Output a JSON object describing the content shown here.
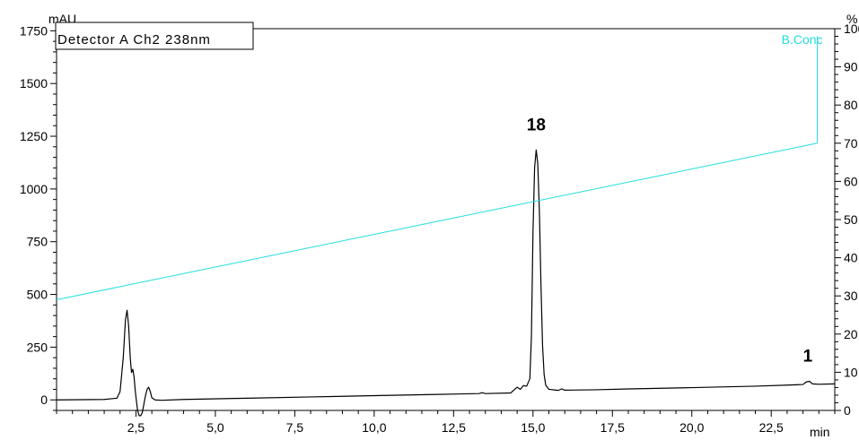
{
  "chart_data": {
    "type": "line",
    "title": "",
    "legend_text": "Detector A Ch2 238nm",
    "y_left_unit": "mAU",
    "y_right_unit": "%",
    "x_unit": "min",
    "xlim": [
      0,
      24.5
    ],
    "ylim_left": [
      -50,
      1760
    ],
    "ylim_right": [
      0,
      100
    ],
    "x_ticks": [
      2.5,
      5.0,
      7.5,
      10.0,
      12.5,
      15.0,
      17.5,
      20.0,
      22.5
    ],
    "x_tick_labels": [
      "2,5",
      "5,0",
      "7,5",
      "10,0",
      "12,5",
      "15,0",
      "17,5",
      "20,0",
      "22,5"
    ],
    "y_left_ticks": [
      0,
      250,
      500,
      750,
      1000,
      1250,
      1500,
      1750
    ],
    "y_left_tick_labels": [
      "0",
      "250",
      "500",
      "750",
      "1000",
      "1250",
      "1500",
      "1750"
    ],
    "y_right_ticks": [
      0,
      10,
      20,
      30,
      40,
      50,
      60,
      70,
      80,
      90,
      100
    ],
    "y_right_tick_labels": [
      "0",
      "10",
      "20",
      "30",
      "40",
      "50",
      "60",
      "70",
      "80",
      "90",
      "100"
    ],
    "series": [
      {
        "name": "Detector A Ch2 238nm",
        "axis": "left",
        "color": "#000000",
        "points": [
          [
            0.0,
            0
          ],
          [
            1.5,
            2
          ],
          [
            1.9,
            8
          ],
          [
            2.0,
            40
          ],
          [
            2.1,
            200
          ],
          [
            2.17,
            380
          ],
          [
            2.22,
            425
          ],
          [
            2.27,
            350
          ],
          [
            2.32,
            200
          ],
          [
            2.36,
            130
          ],
          [
            2.4,
            145
          ],
          [
            2.44,
            110
          ],
          [
            2.48,
            40
          ],
          [
            2.55,
            -50
          ],
          [
            2.6,
            -75
          ],
          [
            2.65,
            -75
          ],
          [
            2.7,
            -60
          ],
          [
            2.75,
            -20
          ],
          [
            2.8,
            20
          ],
          [
            2.85,
            50
          ],
          [
            2.9,
            60
          ],
          [
            2.95,
            40
          ],
          [
            3.0,
            10
          ],
          [
            3.1,
            0
          ],
          [
            3.3,
            -2
          ],
          [
            4.0,
            2
          ],
          [
            6.0,
            8
          ],
          [
            8.0,
            14
          ],
          [
            10.0,
            20
          ],
          [
            12.0,
            26
          ],
          [
            13.3,
            30
          ],
          [
            13.4,
            34
          ],
          [
            13.5,
            30
          ],
          [
            14.3,
            33
          ],
          [
            14.5,
            60
          ],
          [
            14.6,
            50
          ],
          [
            14.7,
            68
          ],
          [
            14.8,
            65
          ],
          [
            14.9,
            100
          ],
          [
            14.95,
            300
          ],
          [
            15.0,
            800
          ],
          [
            15.05,
            1100
          ],
          [
            15.1,
            1185
          ],
          [
            15.15,
            1120
          ],
          [
            15.2,
            900
          ],
          [
            15.25,
            550
          ],
          [
            15.3,
            260
          ],
          [
            15.35,
            120
          ],
          [
            15.4,
            70
          ],
          [
            15.5,
            50
          ],
          [
            15.8,
            45
          ],
          [
            15.9,
            52
          ],
          [
            16.0,
            46
          ],
          [
            17.0,
            48
          ],
          [
            18.0,
            52
          ],
          [
            20.0,
            58
          ],
          [
            22.0,
            65
          ],
          [
            23.0,
            70
          ],
          [
            23.5,
            73
          ],
          [
            23.6,
            85
          ],
          [
            23.7,
            88
          ],
          [
            23.8,
            76
          ],
          [
            24.0,
            74
          ],
          [
            24.5,
            76
          ]
        ]
      },
      {
        "name": "B.Conc",
        "axis": "right",
        "color": "#22dddd",
        "points": [
          [
            0.0,
            29
          ],
          [
            23.95,
            70
          ],
          [
            23.95,
            98
          ]
        ]
      }
    ],
    "annotations": [
      {
        "text": "18",
        "x": 15.1,
        "y": 1185
      },
      {
        "text": "1",
        "x": 23.65,
        "y": 88
      }
    ],
    "grid": false,
    "legend_position": "top-left"
  }
}
